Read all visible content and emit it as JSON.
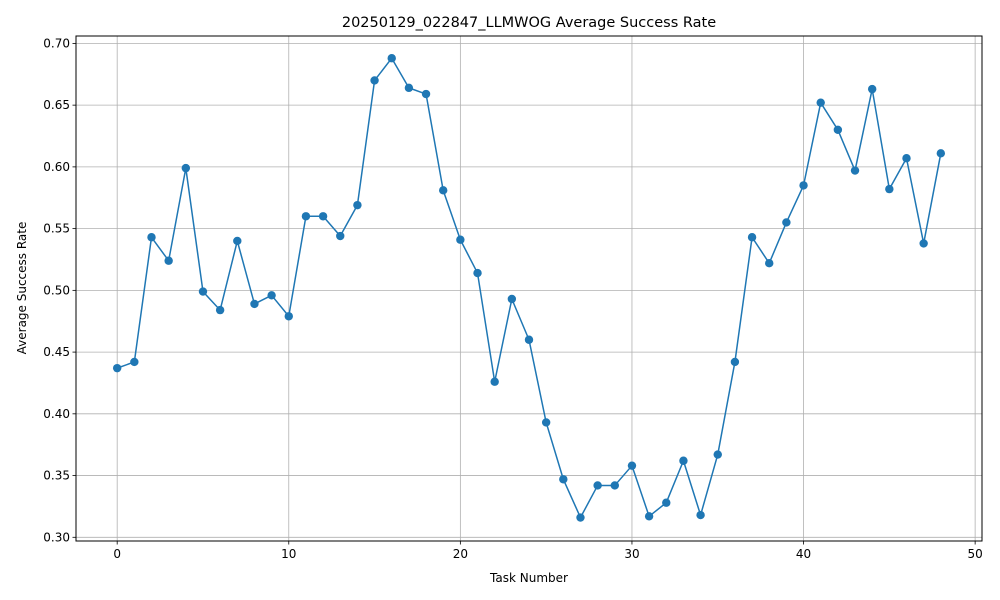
{
  "chart_data": {
    "type": "line",
    "title": "20250129_022847_LLMWOG Average Success Rate",
    "xlabel": "Task Number",
    "ylabel": "Average Success Rate",
    "xlim": [
      -2.4,
      50.4
    ],
    "ylim": [
      0.297,
      0.706
    ],
    "grid": true,
    "xticks": [
      0,
      10,
      20,
      30,
      40,
      50
    ],
    "xtick_labels": [
      "0",
      "10",
      "20",
      "30",
      "40",
      "50"
    ],
    "yticks": [
      0.3,
      0.35,
      0.4,
      0.45,
      0.5,
      0.55,
      0.6,
      0.65,
      0.7
    ],
    "ytick_labels": [
      "0.30",
      "0.35",
      "0.40",
      "0.45",
      "0.50",
      "0.55",
      "0.60",
      "0.65",
      "0.70"
    ],
    "series": [
      {
        "color": "#1f77b4",
        "marker": "circle",
        "x": [
          0,
          1,
          2,
          3,
          4,
          5,
          6,
          7,
          8,
          9,
          10,
          11,
          12,
          13,
          14,
          15,
          16,
          17,
          18,
          19,
          20,
          21,
          22,
          23,
          24,
          25,
          26,
          27,
          28,
          29,
          30,
          31,
          32,
          33,
          34,
          35,
          36,
          37,
          38,
          39,
          40,
          41,
          42,
          43,
          44,
          45,
          46,
          47,
          48
        ],
        "y": [
          0.437,
          0.442,
          0.543,
          0.524,
          0.599,
          0.499,
          0.484,
          0.54,
          0.489,
          0.496,
          0.479,
          0.56,
          0.56,
          0.544,
          0.569,
          0.67,
          0.688,
          0.664,
          0.659,
          0.581,
          0.541,
          0.514,
          0.426,
          0.493,
          0.46,
          0.393,
          0.347,
          0.316,
          0.342,
          0.342,
          0.358,
          0.317,
          0.328,
          0.362,
          0.318,
          0.367,
          0.442,
          0.543,
          0.522,
          0.555,
          0.585,
          0.652,
          0.63,
          0.597,
          0.663,
          0.582,
          0.607,
          0.538,
          0.611
        ]
      }
    ]
  }
}
